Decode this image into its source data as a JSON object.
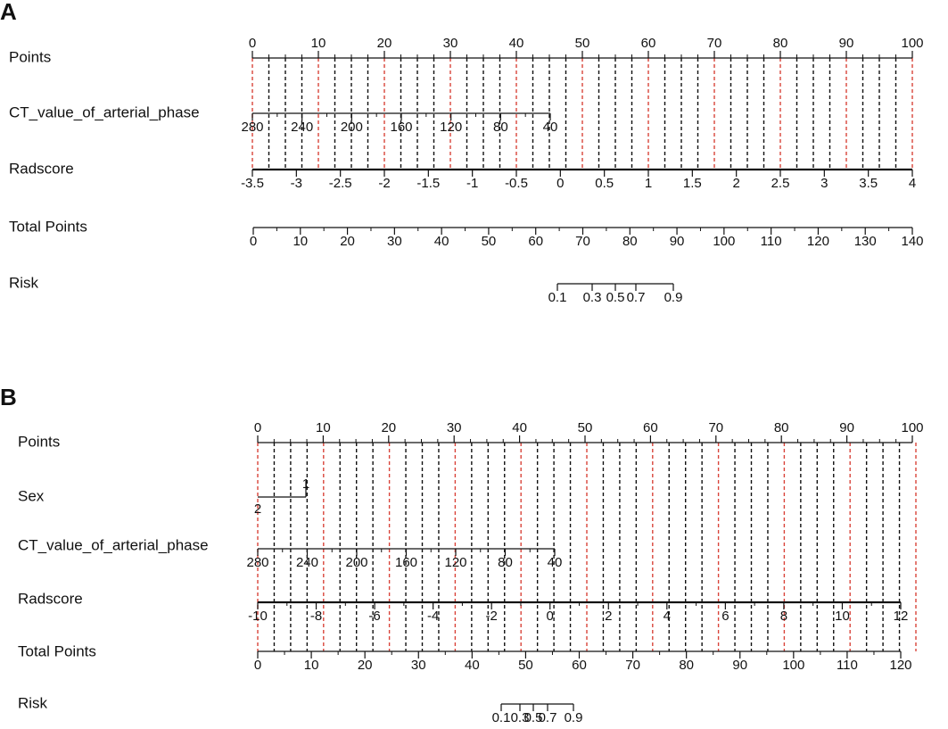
{
  "panels": [
    {
      "letter": "A",
      "rows": [
        {
          "label": "Points",
          "ticks": [
            0,
            10,
            20,
            30,
            40,
            50,
            60,
            70,
            80,
            90,
            100
          ]
        },
        {
          "label": "CT_value_of_arterial_phase",
          "ticks": [
            280,
            240,
            200,
            160,
            120,
            80,
            40
          ]
        },
        {
          "label": "Radscore",
          "ticks": [
            -3.5,
            -3,
            -2.5,
            -2,
            -1.5,
            -1,
            -0.5,
            0,
            0.5,
            1,
            1.5,
            2,
            2.5,
            3,
            3.5,
            4
          ]
        },
        {
          "label": "Total Points",
          "ticks": [
            0,
            10,
            20,
            30,
            40,
            50,
            60,
            70,
            80,
            90,
            100,
            110,
            120,
            130,
            140
          ]
        },
        {
          "label": "Risk",
          "ticks": [
            0.1,
            0.3,
            0.5,
            0.7,
            0.9
          ]
        }
      ]
    },
    {
      "letter": "B",
      "rows": [
        {
          "label": "Points",
          "ticks": [
            0,
            10,
            20,
            30,
            40,
            50,
            60,
            70,
            80,
            90,
            100
          ]
        },
        {
          "label": "Sex",
          "ticks": [
            2,
            1
          ]
        },
        {
          "label": "CT_value_of_arterial_phase",
          "ticks": [
            280,
            240,
            200,
            160,
            120,
            80,
            40
          ]
        },
        {
          "label": "Radscore",
          "ticks": [
            -10,
            -8,
            -6,
            -4,
            -2,
            0,
            2,
            4,
            6,
            8,
            10,
            12
          ]
        },
        {
          "label": "Total Points",
          "ticks": [
            0,
            10,
            20,
            30,
            40,
            50,
            60,
            70,
            80,
            90,
            100,
            110,
            120
          ]
        },
        {
          "label": "Risk",
          "ticks": [
            0.1,
            0.3,
            0.5,
            0.7,
            0.9
          ]
        }
      ]
    }
  ]
}
